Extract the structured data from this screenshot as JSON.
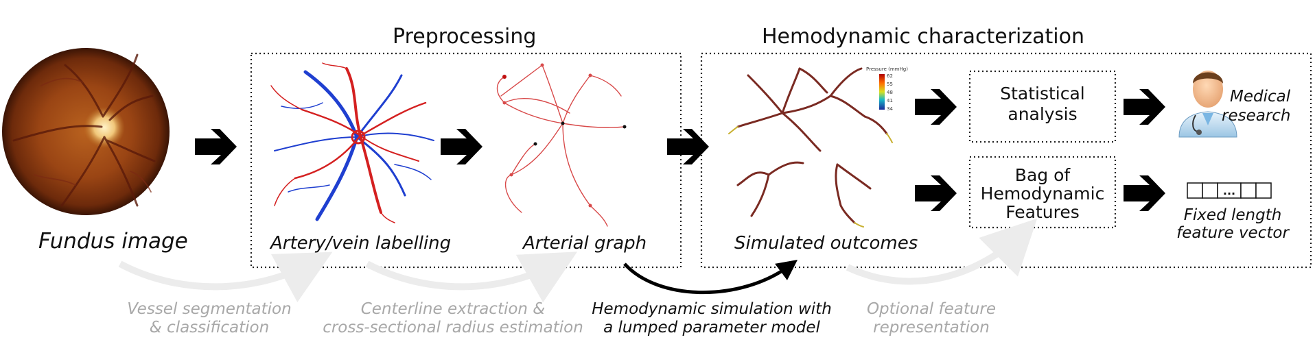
{
  "sections": {
    "preprocessing_title": "Preprocessing",
    "hemodynamic_title": "Hemodynamic characterization"
  },
  "captions": {
    "fundus": "Fundus image",
    "artery_vein": "Artery/vein labelling",
    "arterial_graph": "Arterial graph",
    "simulated": "Simulated outcomes"
  },
  "steps": {
    "segmentation_line1": "Vessel segmentation",
    "segmentation_line2": "& classification",
    "centerline_line1": "Centerline extraction &",
    "centerline_line2": "cross-sectional radius estimation",
    "simulation_line1": "Hemodynamic simulation with",
    "simulation_line2": "a lumped parameter model",
    "optional_line1": "Optional feature",
    "optional_line2": "representation"
  },
  "boxes": {
    "statistical_line1": "Statistical",
    "statistical_line2": "analysis",
    "bag_line1": "Bag of",
    "bag_line2": "Hemodynamic",
    "bag_line3": "Features"
  },
  "outputs": {
    "medical_line1": "Medical",
    "medical_line2": "research",
    "vector_cell": "...",
    "fixed_line1": "Fixed length",
    "fixed_line2": "feature vector"
  },
  "legend": {
    "title": "Pressure (mmHg)",
    "ticks": [
      "62",
      "55",
      "48",
      "41",
      "34"
    ]
  },
  "colors": {
    "artery": "#d42020",
    "vein": "#1f3fd0",
    "graph_vessel": "#d84a4a",
    "sim_vessel": "#7a2a22",
    "gray_text": "#a8a8a8"
  }
}
